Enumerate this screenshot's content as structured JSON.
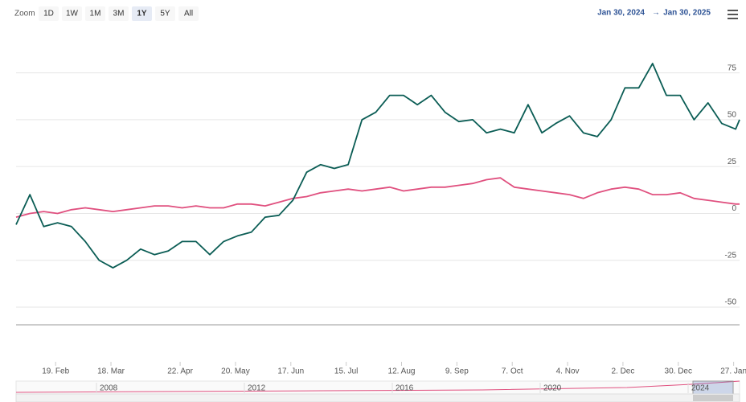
{
  "zoom": {
    "label": "Zoom",
    "buttons": [
      "1D",
      "1W",
      "1M",
      "3M",
      "1Y",
      "5Y",
      "All"
    ],
    "selected": "1Y"
  },
  "range": {
    "from": "Jan 30, 2024",
    "separator": "→",
    "to": "Jan 30, 2025"
  },
  "chart_data": {
    "type": "line",
    "x": [
      "2024-01-30",
      "2024-02-06",
      "2024-02-13",
      "2024-02-20",
      "2024-02-27",
      "2024-03-05",
      "2024-03-12",
      "2024-03-19",
      "2024-03-26",
      "2024-04-02",
      "2024-04-09",
      "2024-04-16",
      "2024-04-23",
      "2024-04-30",
      "2024-05-07",
      "2024-05-14",
      "2024-05-21",
      "2024-05-28",
      "2024-06-04",
      "2024-06-11",
      "2024-06-18",
      "2024-06-25",
      "2024-07-02",
      "2024-07-09",
      "2024-07-16",
      "2024-07-23",
      "2024-07-30",
      "2024-08-06",
      "2024-08-13",
      "2024-08-20",
      "2024-08-27",
      "2024-09-03",
      "2024-09-10",
      "2024-09-17",
      "2024-09-24",
      "2024-10-01",
      "2024-10-08",
      "2024-10-15",
      "2024-10-22",
      "2024-10-29",
      "2024-11-05",
      "2024-11-12",
      "2024-11-19",
      "2024-11-26",
      "2024-12-03",
      "2024-12-10",
      "2024-12-17",
      "2024-12-24",
      "2024-12-31",
      "2025-01-07",
      "2025-01-14",
      "2025-01-21",
      "2025-01-28",
      "2025-01-30"
    ],
    "series": [
      {
        "color": "#0b5d55",
        "values": [
          -6,
          10,
          -7,
          -5,
          -7,
          -15,
          -25,
          -29,
          -25,
          -19,
          -22,
          -20,
          -15,
          -15,
          -22,
          -15,
          -12,
          -10,
          -2,
          -1,
          7,
          22,
          26,
          24,
          26,
          50,
          54,
          63,
          63,
          58,
          63,
          54,
          49,
          50,
          43,
          45,
          43,
          58,
          43,
          48,
          52,
          43,
          41,
          50,
          67,
          67,
          80,
          63,
          63,
          50,
          59,
          48,
          45,
          50
        ]
      },
      {
        "color": "#e0507f",
        "values": [
          -2,
          0,
          1,
          0,
          2,
          3,
          2,
          1,
          2,
          3,
          4,
          4,
          3,
          4,
          3,
          3,
          5,
          5,
          4,
          6,
          8,
          9,
          11,
          12,
          13,
          12,
          13,
          14,
          12,
          13,
          14,
          14,
          15,
          16,
          18,
          19,
          14,
          13,
          12,
          11,
          10,
          8,
          11,
          13,
          14,
          13,
          10,
          10,
          11,
          8,
          7,
          6,
          5,
          5
        ]
      }
    ],
    "xlim": [
      "2024-01-30",
      "2025-01-30"
    ],
    "xticks": [
      {
        "value": "2024-02-19",
        "label": "19. Feb"
      },
      {
        "value": "2024-03-18",
        "label": "18. Mar"
      },
      {
        "value": "2024-04-22",
        "label": "22. Apr"
      },
      {
        "value": "2024-05-20",
        "label": "20. May"
      },
      {
        "value": "2024-06-17",
        "label": "17. Jun"
      },
      {
        "value": "2024-07-15",
        "label": "15. Jul"
      },
      {
        "value": "2024-08-12",
        "label": "12. Aug"
      },
      {
        "value": "2024-09-09",
        "label": "9. Sep"
      },
      {
        "value": "2024-10-07",
        "label": "7. Oct"
      },
      {
        "value": "2024-11-04",
        "label": "4. Nov"
      },
      {
        "value": "2024-12-02",
        "label": "2. Dec"
      },
      {
        "value": "2024-12-30",
        "label": "30. Dec"
      },
      {
        "value": "2025-01-27",
        "label": "27. Jan"
      }
    ],
    "ylim": [
      -59,
      98
    ],
    "yticks": [
      -50,
      -25,
      0,
      25,
      50,
      75
    ],
    "grid": true
  },
  "navigator": {
    "labels": [
      "2008",
      "2012",
      "2016",
      "2020",
      "2024"
    ]
  }
}
